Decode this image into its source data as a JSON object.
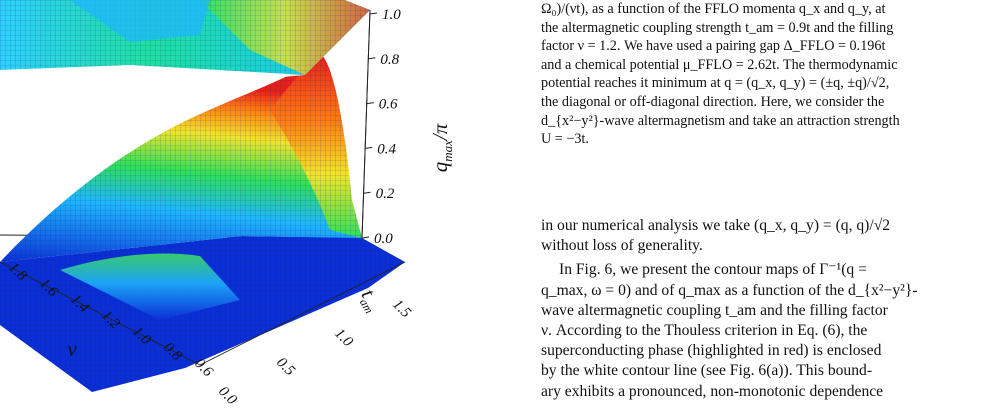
{
  "figure": {
    "zaxis_label": "q_max/π",
    "z_ticks": [
      "1.0",
      "0.8",
      "0.6",
      "0.4",
      "0.2",
      "0.0"
    ],
    "tam_label": "t_am",
    "tam_ticks": [
      "0.0",
      "0.5",
      "1.0",
      "1.5"
    ],
    "nu_label": "ν",
    "nu_ticks": [
      "1.8",
      "1.6",
      "1.4",
      "1.2",
      "1.0",
      "0.8",
      "0.6"
    ],
    "colormap": [
      "#0b2fd6",
      "#1fb6ff",
      "#2fe05a",
      "#f2e42a",
      "#ff7a12",
      "#e8201b"
    ]
  },
  "caption": {
    "line1": "Ω₀)/(νt), as a function of the FFLO momenta q_x and q_y, at",
    "line2": "the altermagnetic coupling strength t_am = 0.9t and the filling",
    "line3": "factor ν = 1.2. We have used a pairing gap Δ_FFLO = 0.196t",
    "line4": "and a chemical potential μ_FFLO = 2.62t. The thermodynamic",
    "line5": "potential reaches it minimum at q = (q_x, q_y) = (±q, ±q)/√2,",
    "line6": "the diagonal or off-diagonal direction. Here, we consider the",
    "line7": "d_{x²−y²}-wave altermagnetism and take an attraction strength",
    "line8": "U = −3t."
  },
  "body": {
    "p1_line1": "in our numerical analysis we take (q_x, q_y) = (q, q)/√2",
    "p1_line2": "without loss of generality.",
    "p2_line1": "In Fig. 6, we present the contour maps of Γ⁻¹(q =",
    "p2_line2": "q_max, ω = 0) and of q_max as a function of the d_{x²−y²}-",
    "p2_line3": "wave altermagnetic coupling t_am and the filling factor",
    "p2_line4": "ν. According to the Thouless criterion in Eq. (6), the",
    "p2_line5": "superconducting phase (highlighted in red) is enclosed",
    "p2_line6": "by the white contour line (see Fig. 6(a)). This bound-",
    "p2_line7": "ary exhibits a pronounced, non-monotonic dependence"
  }
}
